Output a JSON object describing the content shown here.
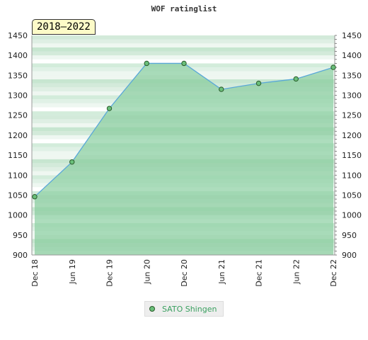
{
  "chart_data": {
    "type": "area",
    "title": "WOF ratinglist",
    "period": "2018–2022",
    "xlabel": "",
    "ylabel": "",
    "categories": [
      "Dec 18",
      "Jun 19",
      "Dec 19",
      "Jun 20",
      "Dec 20",
      "Jun 21",
      "Dec 21",
      "Jun 22",
      "Dec 22"
    ],
    "ylim": [
      900,
      1450
    ],
    "yticks": [
      900,
      950,
      1000,
      1050,
      1100,
      1150,
      1200,
      1250,
      1300,
      1350,
      1400,
      1450
    ],
    "series": [
      {
        "name": "SATO Shingen",
        "values": [
          1046,
          1133,
          1267,
          1380,
          1380,
          1315,
          1330,
          1341,
          1370
        ]
      }
    ],
    "legend_position": "bottom-center",
    "colors": {
      "line": "#5aa8d8",
      "fill": "#8ed0a4",
      "marker_fill": "#6abf7a",
      "marker_stroke": "#2a5a2a"
    }
  }
}
